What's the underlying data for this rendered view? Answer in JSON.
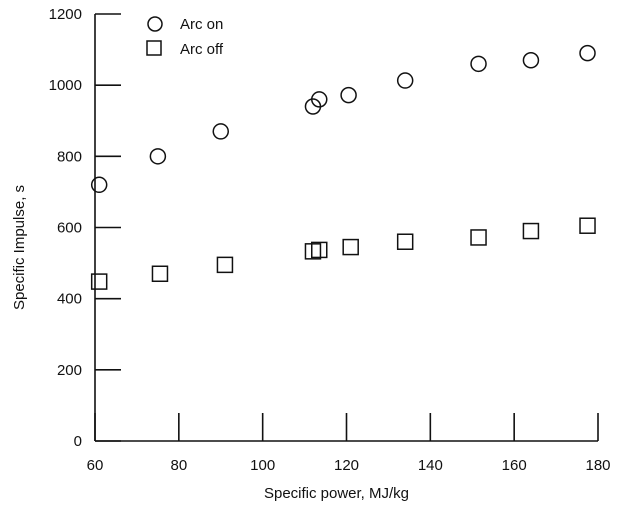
{
  "chart_data": {
    "type": "scatter",
    "xlabel": "Specific power, MJ/kg",
    "ylabel": "Specific Impulse, s",
    "xlim": [
      60,
      180
    ],
    "ylim": [
      0,
      1200
    ],
    "xticks": [
      60,
      80,
      100,
      120,
      140,
      160,
      180
    ],
    "yticks": [
      0,
      200,
      400,
      600,
      800,
      1000,
      1200
    ],
    "grid": false,
    "legend_position": "top-left",
    "series": [
      {
        "name": "Arc on",
        "marker": "circle",
        "x": [
          61,
          75,
          90,
          112,
          113.5,
          120.5,
          134,
          151.5,
          164,
          177.5
        ],
        "y": [
          720,
          800,
          870,
          940,
          960,
          972,
          1013,
          1060,
          1070,
          1090
        ]
      },
      {
        "name": "Arc off",
        "marker": "square",
        "x": [
          61,
          75.5,
          91,
          112,
          113.5,
          121,
          134,
          151.5,
          164,
          177.5
        ],
        "y": [
          448,
          470,
          495,
          533,
          537,
          545,
          560,
          572,
          590,
          605
        ]
      }
    ]
  }
}
